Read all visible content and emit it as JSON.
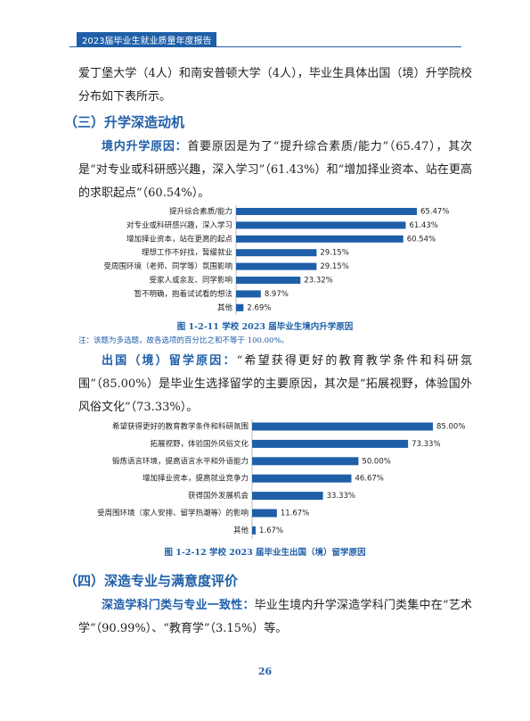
{
  "header": {
    "title": "2023届毕业生就业质量年度报告"
  },
  "paragraphs": [
    {
      "text": "爱丁堡大学（4人）和南安普顿大学（4人），毕业生具体出国（境）升学院校分布如下表所示。"
    },
    {
      "lead": "境内升学原因：",
      "text": "首要原因是为了“提升综合素质/能力”（65.47），其次是“对专业或科研感兴趣，深入学习”（61.43%）和“增加择业资本、站在更高的求职起点”（60.54%）。"
    },
    {
      "lead": "出国（境）留学原因：",
      "text": "“希望获得更好的教育教学条件和科研氛围”（85.00%）是毕业生选择留学的主要原因，其次是“拓展视野，体验国外风俗文化”（73.33%）。"
    },
    {
      "lead": "深造学科门类与专业一致性：",
      "text": "毕业生境内升学深造学科门类集中在“艺术学”（90.99%）、“教育学”（3.15%）等。"
    }
  ],
  "headings": [
    "（三）升学深造动机",
    "（四）深造专业与满意度评价"
  ],
  "note": "注：该题为多选题，故各选项的百分比之和不等于 100.00%。",
  "page_number": "26",
  "chart_data": [
    {
      "type": "hbar",
      "title": "图 1-2-11 学校 2023 届毕业生境内升学原因",
      "color": "#1f5fa8",
      "categories": [
        "提升综合素质/能力",
        "对专业或科研感兴趣，深入学习",
        "增加择业资本，站在更高的起点",
        "理想工作不好找，暂缓就业",
        "受周围环境（老师、同学等）氛围影响",
        "受家人或亲友、同学影响",
        "暂不明确，抱着试试看的想法",
        "其他"
      ],
      "values": [
        65.47,
        61.43,
        60.54,
        29.15,
        29.15,
        23.32,
        8.97,
        2.69
      ],
      "value_labels": [
        "65.47%",
        "61.43%",
        "60.54%",
        "29.15%",
        "29.15%",
        "23.32%",
        "8.97%",
        "2.69%"
      ]
    },
    {
      "type": "hbar",
      "title": "图 1-2-12 学校 2023 届毕业生出国（境）留学原因",
      "color": "#1f5fa8",
      "categories": [
        "希望获得更好的教育教学条件和科研氛围",
        "拓展视野，体验国外风俗文化",
        "锻炼语言环境，提高语言水平和外语能力",
        "增加择业资本，提高就业竞争力",
        "获得国外发展机会",
        "受周围环境（家人安排、留学热潮等）的影响",
        "其他"
      ],
      "values": [
        85.0,
        73.33,
        50.0,
        46.67,
        33.33,
        11.67,
        1.67
      ],
      "value_labels": [
        "85.00%",
        "73.33%",
        "50.00%",
        "46.67%",
        "33.33%",
        "11.67%",
        "1.67%"
      ]
    }
  ]
}
